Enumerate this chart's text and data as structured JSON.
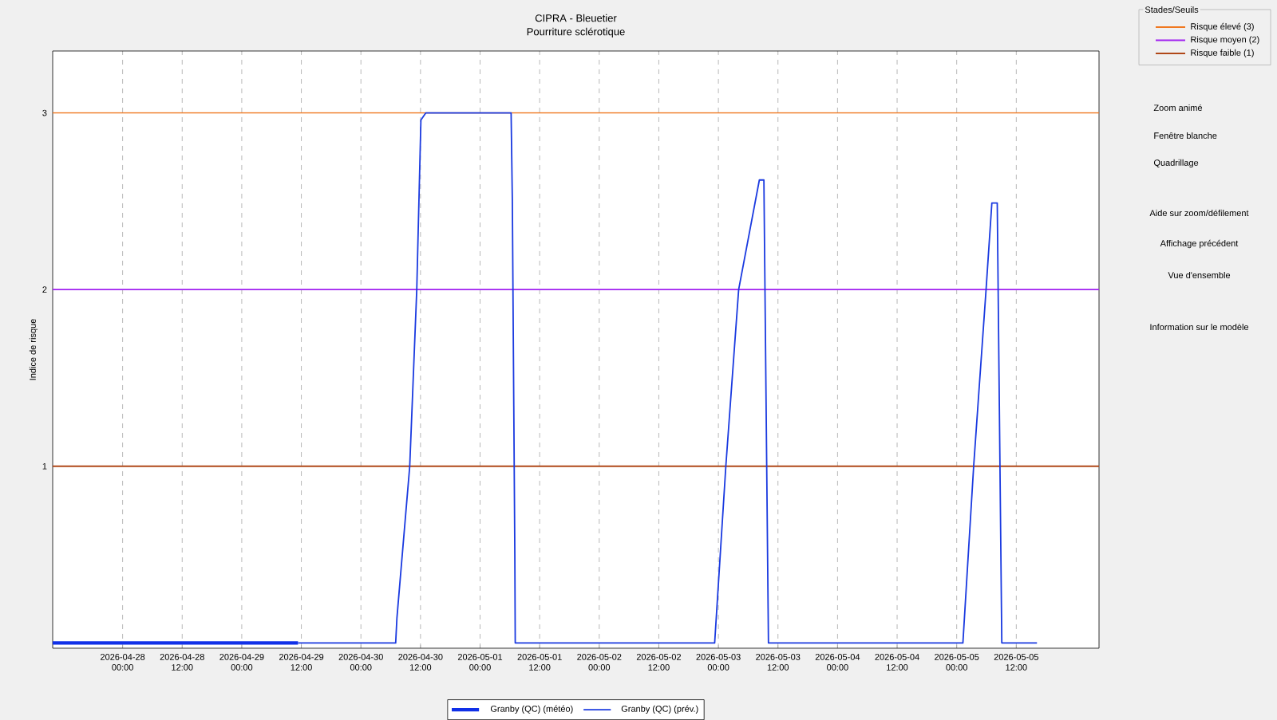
{
  "chart_data": {
    "type": "line",
    "title": "CIPRA - Bleuetier",
    "subtitle": "Pourriture sclérotique",
    "ylabel": "Indice de risque",
    "legend_title": "Stades/Seuils",
    "xlim": [
      "2026-04-27T09:55",
      "2026-05-06T04:40"
    ],
    "xticks": [
      {
        "value": "2026-04-28T00:00",
        "label": "2026-04-28 00:00"
      },
      {
        "value": "2026-04-28T12:00",
        "label": "2026-04-28 12:00"
      },
      {
        "value": "2026-04-29T00:00",
        "label": "2026-04-29 00:00"
      },
      {
        "value": "2026-04-29T12:00",
        "label": "2026-04-29 12:00"
      },
      {
        "value": "2026-04-30T00:00",
        "label": "2026-04-30 00:00"
      },
      {
        "value": "2026-04-30T12:00",
        "label": "2026-04-30 12:00"
      },
      {
        "value": "2026-05-01T00:00",
        "label": "2026-05-01 00:00"
      },
      {
        "value": "2026-05-01T12:00",
        "label": "2026-05-01 12:00"
      },
      {
        "value": "2026-05-02T00:00",
        "label": "2026-05-02 00:00"
      },
      {
        "value": "2026-05-02T12:00",
        "label": "2026-05-02 12:00"
      },
      {
        "value": "2026-05-03T00:00",
        "label": "2026-05-03 00:00"
      },
      {
        "value": "2026-05-03T12:00",
        "label": "2026-05-03 12:00"
      },
      {
        "value": "2026-05-04T00:00",
        "label": "2026-05-04 00:00"
      },
      {
        "value": "2026-05-04T12:00",
        "label": "2026-05-04 12:00"
      },
      {
        "value": "2026-05-05T00:00",
        "label": "2026-05-05 00:00"
      },
      {
        "value": "2026-05-05T12:00",
        "label": "2026-05-05 12:00"
      }
    ],
    "ylim": [
      -0.03,
      3.35
    ],
    "yticks": [
      1,
      2,
      3
    ],
    "grid": "x",
    "legend": "bottom",
    "series": [
      {
        "name": "Granby (QC) (météo)",
        "color": "#1030e8",
        "x": [
          "2026-04-27T09:55",
          "2026-04-29T11:20"
        ],
        "values": [
          0,
          0
        ]
      },
      {
        "name": "Granby (QC) (prév.)",
        "color": "#1a3ae0",
        "x": [
          "2026-04-29T11:20",
          "2026-04-30T07:00",
          "2026-04-30T07:15",
          "2026-04-30T09:50",
          "2026-04-30T11:15",
          "2026-04-30T12:05",
          "2026-04-30T13:05",
          "2026-05-01T06:15",
          "2026-05-01T06:30",
          "2026-05-01T07:00",
          "2026-05-01T07:05",
          "2026-05-02T23:15",
          "2026-05-03T01:30",
          "2026-05-03T04:05",
          "2026-05-03T08:15",
          "2026-05-03T09:10",
          "2026-05-03T10:05",
          "2026-05-05T01:15",
          "2026-05-05T03:25",
          "2026-05-05T05:55",
          "2026-05-05T07:05",
          "2026-05-05T08:10",
          "2026-05-05T09:05",
          "2026-05-05T16:10"
        ],
        "values": [
          0,
          0,
          0.14,
          1,
          2,
          2.96,
          3,
          3,
          2.5,
          0.5,
          0,
          0,
          1,
          2,
          2.62,
          2.62,
          0,
          0,
          1,
          2,
          2.49,
          2.49,
          0,
          0
        ]
      }
    ],
    "ref_lines": [
      {
        "axis": "y",
        "value": 3,
        "label": "Risque élevé (3)",
        "color": "#f07820"
      },
      {
        "axis": "y",
        "value": 2,
        "label": "Risque moyen (2)",
        "color": "#a020f0"
      },
      {
        "axis": "y",
        "value": 1,
        "label": "Risque faible (1)",
        "color": "#b04818"
      }
    ],
    "annotations": [
      "Zoom animé",
      "Fenêtre blanche",
      "Quadrillage",
      "Aide sur zoom/défilement",
      "Affichage précédent",
      "Vue d'ensemble",
      "Information sur le modèle"
    ]
  }
}
